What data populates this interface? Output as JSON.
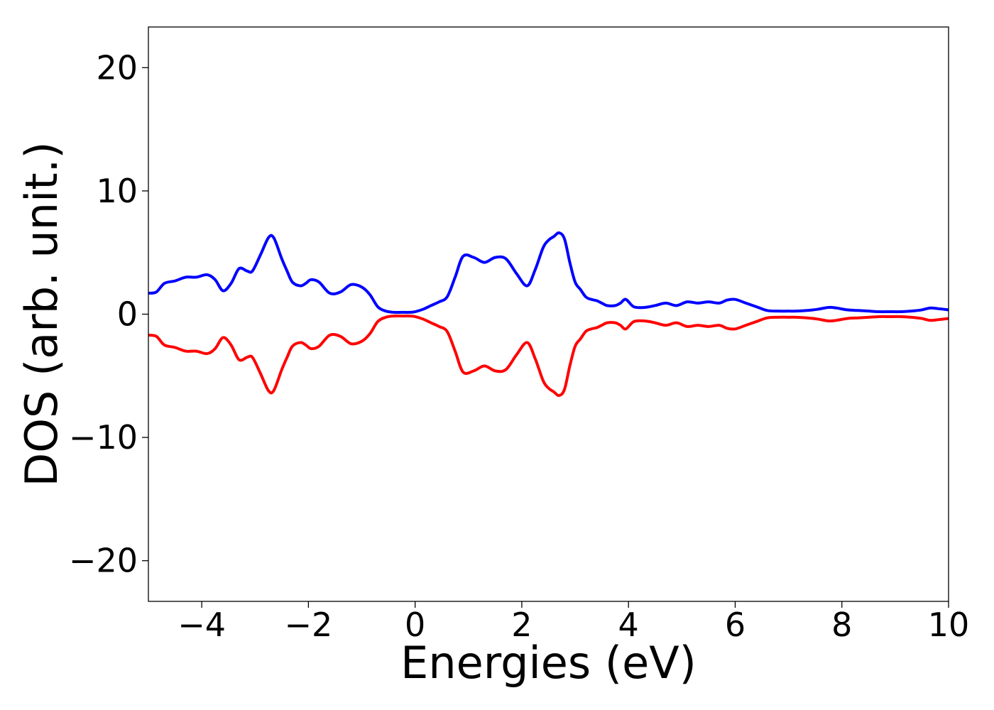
{
  "chart_data": {
    "type": "line",
    "title": "",
    "xlabel": "Energies (eV)",
    "ylabel": "DOS (arb. unit.)",
    "xlim": [
      -5,
      10
    ],
    "ylim": [
      -23.3,
      23.3
    ],
    "xticks": [
      -4,
      -2,
      0,
      2,
      4,
      6,
      8,
      10
    ],
    "xtick_labels": [
      "−4",
      "−2",
      "0",
      "2",
      "4",
      "6",
      "8",
      "10"
    ],
    "yticks": [
      -20,
      -10,
      0,
      10,
      20
    ],
    "ytick_labels": [
      "−20",
      "−10",
      "0",
      "10",
      "20"
    ],
    "grid": false,
    "legend": false,
    "series": [
      {
        "color": "#0000ff",
        "x": [
          -5.0,
          -4.85,
          -4.7,
          -4.5,
          -4.3,
          -4.1,
          -3.9,
          -3.75,
          -3.6,
          -3.45,
          -3.3,
          -3.15,
          -3.05,
          -2.9,
          -2.75,
          -2.65,
          -2.5,
          -2.4,
          -2.3,
          -2.15,
          -2.05,
          -1.95,
          -1.8,
          -1.6,
          -1.4,
          -1.2,
          -1.0,
          -0.85,
          -0.7,
          -0.55,
          -0.4,
          -0.25,
          -0.1,
          0.0,
          0.15,
          0.3,
          0.45,
          0.6,
          0.75,
          0.9,
          1.1,
          1.3,
          1.5,
          1.7,
          1.9,
          2.1,
          2.25,
          2.4,
          2.5,
          2.6,
          2.7,
          2.8,
          2.9,
          3.0,
          3.1,
          3.2,
          3.3,
          3.4,
          3.5,
          3.6,
          3.75,
          3.85,
          3.95,
          4.1,
          4.3,
          4.5,
          4.7,
          4.9,
          5.1,
          5.3,
          5.5,
          5.7,
          5.85,
          6.0,
          6.2,
          6.4,
          6.6,
          6.8,
          7.0,
          7.15,
          7.35,
          7.55,
          7.75,
          7.9,
          8.1,
          8.3,
          8.5,
          8.7,
          8.9,
          9.1,
          9.3,
          9.5,
          9.65,
          9.8,
          10.0
        ],
        "values": [
          1.7,
          1.8,
          2.5,
          2.7,
          3.0,
          3.0,
          3.2,
          2.8,
          1.9,
          2.5,
          3.7,
          3.5,
          3.5,
          4.8,
          6.2,
          6.2,
          4.5,
          3.5,
          2.6,
          2.3,
          2.5,
          2.8,
          2.6,
          1.7,
          1.8,
          2.4,
          2.2,
          1.6,
          0.6,
          0.25,
          0.15,
          0.15,
          0.15,
          0.2,
          0.4,
          0.7,
          1.0,
          1.4,
          3.0,
          4.7,
          4.6,
          4.2,
          4.6,
          4.5,
          3.3,
          2.3,
          3.6,
          5.4,
          6.0,
          6.3,
          6.6,
          6.1,
          4.2,
          2.6,
          2.0,
          1.4,
          1.2,
          1.1,
          0.9,
          0.7,
          0.7,
          0.9,
          1.2,
          0.6,
          0.55,
          0.7,
          0.9,
          0.7,
          1.0,
          0.9,
          1.0,
          0.9,
          1.15,
          1.2,
          0.9,
          0.6,
          0.3,
          0.25,
          0.25,
          0.25,
          0.3,
          0.4,
          0.55,
          0.5,
          0.35,
          0.3,
          0.25,
          0.2,
          0.2,
          0.2,
          0.25,
          0.35,
          0.5,
          0.45,
          0.35
        ]
      },
      {
        "color": "#ff0000",
        "x": [
          -5.0,
          -4.85,
          -4.7,
          -4.5,
          -4.3,
          -4.1,
          -3.9,
          -3.75,
          -3.6,
          -3.45,
          -3.3,
          -3.15,
          -3.05,
          -2.9,
          -2.75,
          -2.65,
          -2.5,
          -2.4,
          -2.3,
          -2.15,
          -2.05,
          -1.95,
          -1.8,
          -1.6,
          -1.4,
          -1.2,
          -1.0,
          -0.85,
          -0.7,
          -0.55,
          -0.4,
          -0.25,
          -0.1,
          0.0,
          0.15,
          0.3,
          0.45,
          0.6,
          0.75,
          0.9,
          1.1,
          1.3,
          1.5,
          1.7,
          1.9,
          2.1,
          2.25,
          2.4,
          2.5,
          2.6,
          2.7,
          2.8,
          2.9,
          3.0,
          3.1,
          3.2,
          3.3,
          3.4,
          3.5,
          3.6,
          3.75,
          3.85,
          3.95,
          4.1,
          4.3,
          4.5,
          4.7,
          4.9,
          5.1,
          5.3,
          5.5,
          5.7,
          5.85,
          6.0,
          6.2,
          6.4,
          6.6,
          6.8,
          7.0,
          7.15,
          7.35,
          7.55,
          7.75,
          7.9,
          8.1,
          8.3,
          8.5,
          8.7,
          8.9,
          9.1,
          9.3,
          9.5,
          9.65,
          9.8,
          10.0
        ],
        "values": [
          -1.7,
          -1.8,
          -2.5,
          -2.7,
          -3.0,
          -3.0,
          -3.2,
          -2.8,
          -1.9,
          -2.5,
          -3.7,
          -3.5,
          -3.5,
          -4.8,
          -6.2,
          -6.2,
          -4.5,
          -3.5,
          -2.6,
          -2.3,
          -2.5,
          -2.8,
          -2.6,
          -1.7,
          -1.8,
          -2.4,
          -2.2,
          -1.6,
          -0.6,
          -0.25,
          -0.15,
          -0.15,
          -0.15,
          -0.2,
          -0.4,
          -0.7,
          -1.0,
          -1.4,
          -3.0,
          -4.7,
          -4.6,
          -4.2,
          -4.6,
          -4.5,
          -3.3,
          -2.3,
          -3.6,
          -5.4,
          -6.0,
          -6.3,
          -6.6,
          -6.1,
          -4.2,
          -2.6,
          -2.0,
          -1.4,
          -1.2,
          -1.1,
          -0.9,
          -0.7,
          -0.7,
          -0.9,
          -1.2,
          -0.6,
          -0.55,
          -0.7,
          -0.9,
          -0.7,
          -1.0,
          -0.9,
          -1.0,
          -0.9,
          -1.15,
          -1.2,
          -0.9,
          -0.6,
          -0.3,
          -0.25,
          -0.25,
          -0.25,
          -0.3,
          -0.4,
          -0.55,
          -0.5,
          -0.35,
          -0.3,
          -0.25,
          -0.2,
          -0.2,
          -0.2,
          -0.25,
          -0.35,
          -0.5,
          -0.45,
          -0.35
        ]
      }
    ]
  }
}
